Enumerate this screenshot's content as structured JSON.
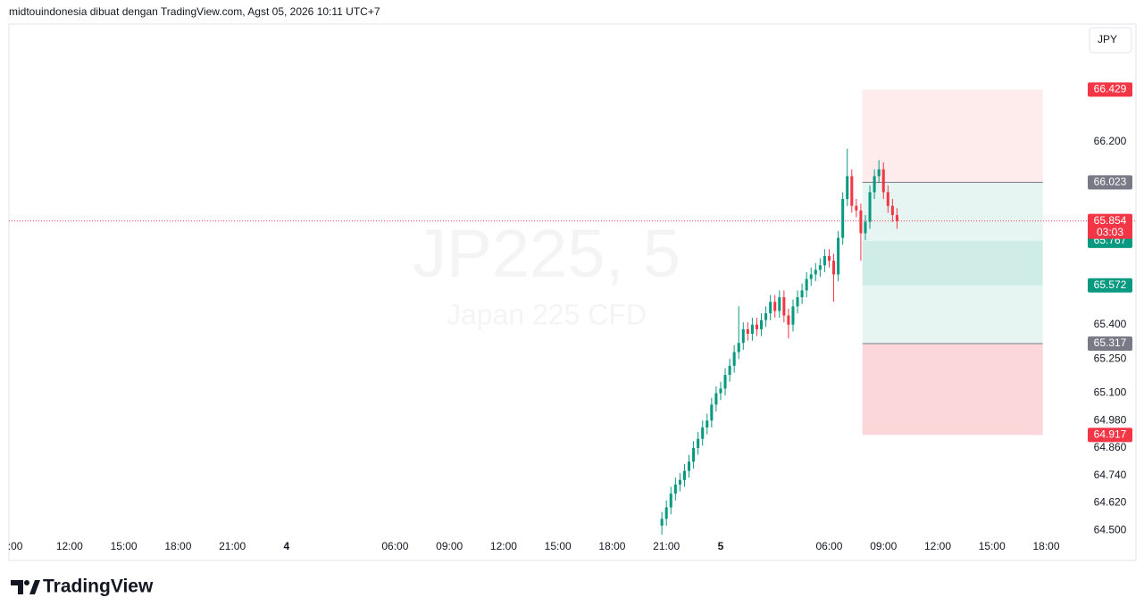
{
  "header": {
    "text": "midtouindonesia dibuat dengan TradingView.com, Agst 05, 2026 10:11 UTC+7"
  },
  "currency_button": "JPY",
  "footer": {
    "brand": "TradingView"
  },
  "chart_data": {
    "type": "candlestick",
    "watermark": {
      "symbol": "JP225, 5",
      "description": "Japan 225 CFD"
    },
    "up_color": "#089981",
    "down_color": "#f23645",
    "grid": false,
    "xlim": [
      -15.35,
      43.9
    ],
    "ylim": [
      64.477,
      66.712
    ],
    "xticks": [
      {
        "value": -15,
        "label": ":00"
      },
      {
        "value": -12,
        "label": "12:00"
      },
      {
        "value": -9,
        "label": "15:00"
      },
      {
        "value": -6,
        "label": "18:00"
      },
      {
        "value": -3,
        "label": "21:00"
      },
      {
        "value": 0,
        "label": "4"
      },
      {
        "value": 6,
        "label": "06:00"
      },
      {
        "value": 9,
        "label": "09:00"
      },
      {
        "value": 12,
        "label": "12:00"
      },
      {
        "value": 15,
        "label": "15:00"
      },
      {
        "value": 18,
        "label": "18:00"
      },
      {
        "value": 21,
        "label": "21:00"
      },
      {
        "value": 24,
        "label": "5"
      },
      {
        "value": 30,
        "label": "06:00"
      },
      {
        "value": 33,
        "label": "09:00"
      },
      {
        "value": 36,
        "label": "12:00"
      },
      {
        "value": 39,
        "label": "15:00"
      },
      {
        "value": 42,
        "label": "18:00"
      }
    ],
    "yticks": [
      {
        "value": 66.2,
        "label": "66.200"
      },
      {
        "value": 65.4,
        "label": "65.400"
      },
      {
        "value": 65.25,
        "label": "65.250"
      },
      {
        "value": 65.1,
        "label": "65.100"
      },
      {
        "value": 64.98,
        "label": "64.980"
      },
      {
        "value": 64.86,
        "label": "64.860"
      },
      {
        "value": 64.74,
        "label": "64.740"
      },
      {
        "value": 64.62,
        "label": "64.620"
      },
      {
        "value": 64.5,
        "label": "64.500"
      }
    ],
    "x": [
      20.75,
      21,
      21.25,
      21.5,
      21.75,
      22,
      22.25,
      22.5,
      22.75,
      23,
      23.25,
      23.5,
      23.75,
      24,
      24.25,
      24.5,
      24.75,
      25,
      25.25,
      25.5,
      25.75,
      26,
      26.25,
      26.5,
      26.75,
      27,
      27.25,
      27.5,
      27.75,
      28,
      28.25,
      28.5,
      28.75,
      29,
      29.25,
      29.5,
      29.75,
      30,
      30.25,
      30.5,
      30.75,
      31,
      31.25,
      31.5,
      31.75,
      32,
      32.25,
      32.5,
      32.75,
      33,
      33.25,
      33.5,
      33.75
    ],
    "open": [
      64.52,
      64.55,
      64.6,
      64.66,
      64.7,
      64.72,
      64.76,
      64.8,
      64.86,
      64.9,
      64.95,
      64.98,
      65.05,
      65.1,
      65.12,
      65.18,
      65.22,
      65.28,
      65.32,
      65.38,
      65.36,
      65.4,
      65.38,
      65.42,
      65.45,
      65.5,
      65.46,
      65.52,
      65.44,
      65.4,
      65.48,
      65.52,
      65.55,
      65.6,
      65.62,
      65.64,
      65.66,
      65.7,
      65.68,
      65.62,
      65.78,
      65.95,
      66.05,
      65.92,
      65.9,
      65.8,
      65.85,
      65.98,
      66.05,
      66.08,
      65.98,
      65.92,
      65.88
    ],
    "high": [
      64.58,
      64.63,
      64.69,
      64.73,
      64.75,
      64.79,
      64.83,
      64.89,
      64.93,
      64.98,
      65.01,
      65.08,
      65.13,
      65.15,
      65.21,
      65.25,
      65.31,
      65.48,
      65.41,
      65.41,
      65.43,
      65.43,
      65.45,
      65.48,
      65.53,
      65.53,
      65.55,
      65.55,
      65.47,
      65.51,
      65.55,
      65.58,
      65.63,
      65.65,
      65.67,
      65.69,
      65.73,
      65.73,
      65.71,
      65.81,
      65.98,
      66.17,
      66.08,
      65.95,
      65.93,
      65.88,
      66.01,
      66.08,
      66.12,
      66.11,
      66.01,
      65.95,
      65.91
    ],
    "low": [
      64.48,
      64.52,
      64.57,
      64.63,
      64.67,
      64.69,
      64.73,
      64.77,
      64.83,
      64.87,
      64.92,
      64.95,
      65.02,
      65.07,
      65.09,
      65.15,
      65.19,
      65.25,
      65.29,
      65.33,
      65.33,
      65.35,
      65.35,
      65.39,
      65.42,
      65.43,
      65.43,
      65.41,
      65.34,
      65.37,
      65.45,
      65.49,
      65.52,
      65.57,
      65.59,
      65.61,
      65.63,
      65.65,
      65.5,
      65.59,
      65.75,
      65.92,
      65.89,
      65.87,
      65.68,
      65.77,
      65.82,
      65.95,
      66.02,
      65.95,
      65.89,
      65.85,
      65.82
    ],
    "close": [
      64.55,
      64.6,
      64.66,
      64.7,
      64.72,
      64.76,
      64.8,
      64.86,
      64.9,
      64.95,
      64.98,
      65.05,
      65.1,
      65.12,
      65.18,
      65.22,
      65.28,
      65.32,
      65.38,
      65.36,
      65.4,
      65.38,
      65.42,
      65.45,
      65.5,
      65.46,
      65.52,
      65.44,
      65.4,
      65.48,
      65.52,
      65.55,
      65.6,
      65.62,
      65.64,
      65.66,
      65.7,
      65.68,
      65.62,
      65.78,
      65.95,
      66.05,
      65.92,
      65.9,
      65.8,
      65.85,
      65.98,
      66.05,
      66.08,
      65.98,
      65.92,
      65.88,
      65.854
    ],
    "current_price": {
      "value": 65.854,
      "countdown": "03:03",
      "color": "#f23645"
    },
    "positions": [
      {
        "entry": 66.023,
        "stop": 66.429,
        "target": 65.572,
        "start": 31.84,
        "end": 41.81
      },
      {
        "entry": 65.317,
        "stop": 64.917,
        "target": 65.767,
        "start": 31.84,
        "end": 41.81
      }
    ]
  }
}
